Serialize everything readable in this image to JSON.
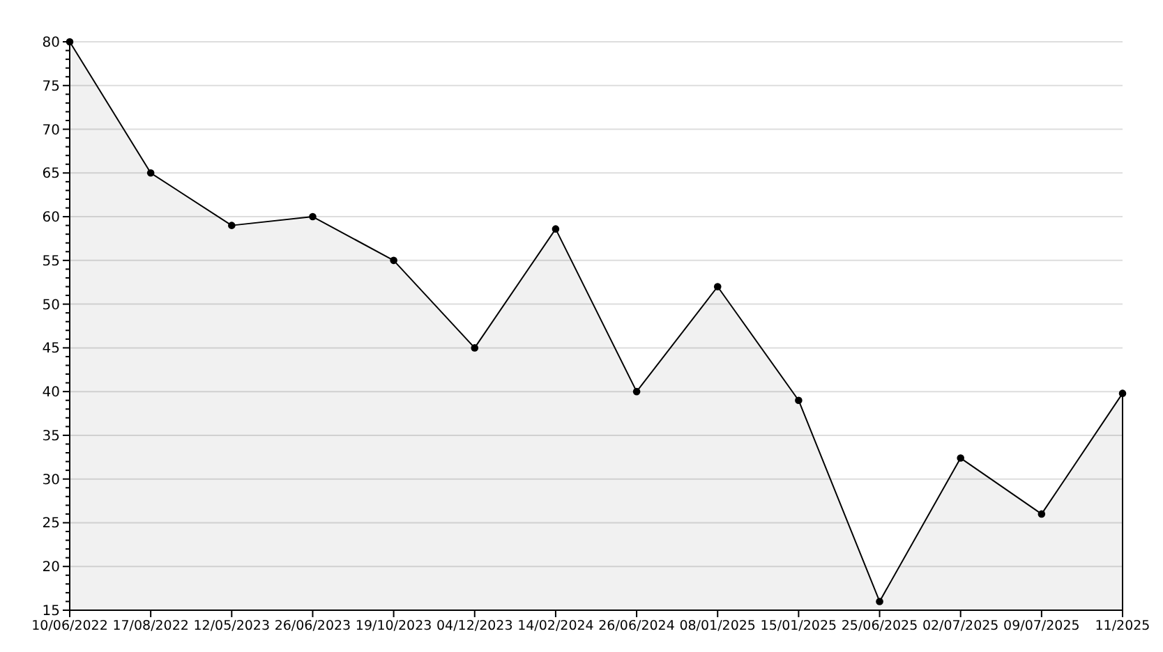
{
  "chart_data": {
    "type": "area",
    "categories": [
      "10/06/2022",
      "17/08/2022",
      "12/05/2023",
      "26/06/2023",
      "19/10/2023",
      "04/12/2023",
      "14/02/2024",
      "26/06/2024",
      "08/01/2025",
      "15/01/2025",
      "25/06/2025",
      "02/07/2025",
      "09/07/2025",
      "11/2025"
    ],
    "series": [
      {
        "color": "#000000",
        "values": [
          80,
          65,
          59,
          60,
          55,
          45,
          58.6,
          40,
          52,
          39,
          16,
          32.4,
          26,
          39.8
        ]
      }
    ],
    "ylim": [
      15,
      80
    ],
    "yticks": [
      15,
      {
        "value": 16,
        "label": null
      },
      {
        "value": 17,
        "label": null
      },
      {
        "value": 18,
        "label": null
      },
      {
        "value": 19,
        "label": null
      },
      20,
      {
        "value": 21,
        "label": null
      },
      {
        "value": 22,
        "label": null
      },
      {
        "value": 23,
        "label": null
      },
      {
        "value": 24,
        "label": null
      },
      25,
      {
        "value": 26,
        "label": null
      },
      {
        "value": 27,
        "label": null
      },
      {
        "value": 28,
        "label": null
      },
      {
        "value": 29,
        "label": null
      },
      30,
      {
        "value": 31,
        "label": null
      },
      {
        "value": 32,
        "label": null
      },
      {
        "value": 33,
        "label": null
      },
      {
        "value": 34,
        "label": null
      },
      35,
      {
        "value": 36,
        "label": null
      },
      {
        "value": 37,
        "label": null
      },
      {
        "value": 38,
        "label": null
      },
      {
        "value": 39,
        "label": null
      },
      40,
      {
        "value": 41,
        "label": null
      },
      {
        "value": 42,
        "label": null
      },
      {
        "value": 43,
        "label": null
      },
      {
        "value": 44,
        "label": null
      },
      45,
      {
        "value": 46,
        "label": null
      },
      {
        "value": 47,
        "label": null
      },
      {
        "value": 48,
        "label": null
      },
      {
        "value": 49,
        "label": null
      },
      50,
      {
        "value": 51,
        "label": null
      },
      {
        "value": 52,
        "label": null
      },
      {
        "value": 53,
        "label": null
      },
      {
        "value": 54,
        "label": null
      },
      55,
      {
        "value": 56,
        "label": null
      },
      {
        "value": 57,
        "label": null
      },
      {
        "value": 58,
        "label": null
      },
      {
        "value": 59,
        "label": null
      },
      60,
      {
        "value": 61,
        "label": null
      },
      {
        "value": 62,
        "label": null
      },
      {
        "value": 63,
        "label": null
      },
      {
        "value": 64,
        "label": null
      },
      65,
      {
        "value": 66,
        "label": null
      },
      {
        "value": 67,
        "label": null
      },
      {
        "value": 68,
        "label": null
      },
      {
        "value": 69,
        "label": null
      },
      70,
      {
        "value": 71,
        "label": null
      },
      {
        "value": 72,
        "label": null
      },
      {
        "value": 73,
        "label": null
      },
      {
        "value": 74,
        "label": null
      },
      75,
      {
        "value": 76,
        "label": null
      },
      {
        "value": 77,
        "label": null
      },
      {
        "value": 78,
        "label": null
      },
      {
        "value": 79,
        "label": null
      },
      80
    ],
    "grid": "y",
    "marker": "circle",
    "line_style": "solid"
  }
}
